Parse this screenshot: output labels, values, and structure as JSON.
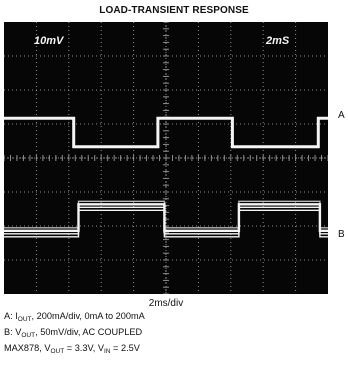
{
  "title": "LOAD-TRANSIENT RESPONSE",
  "scope_readouts": {
    "volts_per_div": "10mV",
    "time_per_div": "2mS"
  },
  "x_axis_label": "2ms/div",
  "trace_labels": {
    "a": "A",
    "b": "B"
  },
  "captions": {
    "line_a": {
      "pre": "A:  I",
      "sub1": "OUT",
      "post": ", 200mA/div, 0mA to 200mA"
    },
    "line_b": {
      "pre": "B:  V",
      "sub1": "OUT",
      "post": ", 50mV/div, AC COUPLED"
    },
    "line_c": {
      "pre": "MAX878, V",
      "sub1": "OUT",
      "mid": " = 3.3V, V",
      "sub2": "IN",
      "post": " = 2.5V"
    }
  },
  "colors": {
    "screen": "#060606",
    "trace": "#f4f4f4",
    "grid": "#8f8f8f"
  },
  "chart_data": {
    "type": "line",
    "title": "LOAD-TRANSIENT RESPONSE",
    "xlabel": "2ms/div",
    "x_divisions": 10,
    "y_divisions": 8,
    "xlim": [
      0,
      10
    ],
    "ylim": [
      0,
      8
    ],
    "grid": true,
    "series": [
      {
        "name": "A",
        "points": [
          [
            0,
            5.17
          ],
          [
            2.15,
            5.17
          ],
          [
            2.15,
            4.33
          ],
          [
            4.75,
            4.33
          ],
          [
            4.75,
            5.17
          ],
          [
            7.05,
            5.17
          ],
          [
            7.05,
            4.33
          ],
          [
            9.7,
            4.33
          ],
          [
            9.7,
            5.17
          ],
          [
            10,
            5.17
          ]
        ]
      },
      {
        "name": "B",
        "points": [
          [
            0,
            1.8
          ],
          [
            2.3,
            1.8
          ],
          [
            2.3,
            2.58
          ],
          [
            4.95,
            2.58
          ],
          [
            4.95,
            1.8
          ],
          [
            7.25,
            1.8
          ],
          [
            7.25,
            2.58
          ],
          [
            9.75,
            2.58
          ],
          [
            9.75,
            1.8
          ],
          [
            10,
            1.8
          ]
        ]
      }
    ]
  }
}
